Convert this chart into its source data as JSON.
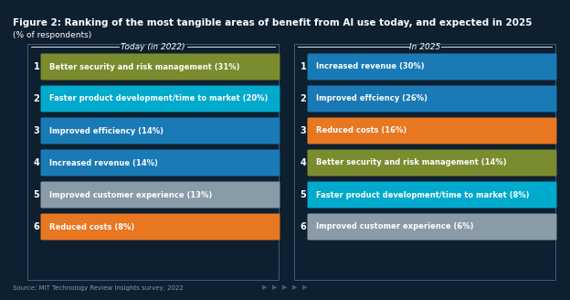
{
  "title": "Figure 2: Ranking of the most tangible areas of benefit from AI use today, and expected in 2025",
  "subtitle": "(% of respondents)",
  "source": "Source: MIT Technology Review Insights survey, 2022",
  "bg_color": "#0e1f30",
  "left_header": "Today (in 2022)",
  "right_header": "In 2025",
  "left_items": [
    {
      "rank": "1",
      "label": "Better security and risk management (31%)",
      "color": "#7a8c2e"
    },
    {
      "rank": "2",
      "label": "Faster product development/time to market (20%)",
      "color": "#00aacc"
    },
    {
      "rank": "3",
      "label": "Improved efficiency (14%)",
      "color": "#1a7ab5"
    },
    {
      "rank": "4",
      "label": "Increased revenue (14%)",
      "color": "#1a7ab5"
    },
    {
      "rank": "5",
      "label": "Improved customer experience (13%)",
      "color": "#8a9ba8"
    },
    {
      "rank": "6",
      "label": "Reduced costs (8%)",
      "color": "#e87722"
    }
  ],
  "right_items": [
    {
      "rank": "1",
      "label": "Increased revenue (30%)",
      "color": "#1a7ab5"
    },
    {
      "rank": "2",
      "label": "Improved effciency (26%)",
      "color": "#1a7ab5"
    },
    {
      "rank": "3",
      "label": "Reduced costs (16%)",
      "color": "#e87722"
    },
    {
      "rank": "4",
      "label": "Better security and risk management (14%)",
      "color": "#7a8c2e"
    },
    {
      "rank": "5",
      "label": "Faster product development/time to market (8%)",
      "color": "#00aacc"
    },
    {
      "rank": "6",
      "label": "Improved customer experience (6%)",
      "color": "#8a9ba8"
    }
  ],
  "fig_width": 6.24,
  "fig_height": 3.28,
  "dpi": 100,
  "title_fontsize": 7.5,
  "subtitle_fontsize": 6.5,
  "label_fontsize": 6.0,
  "rank_fontsize": 7.0,
  "header_fontsize": 6.5,
  "source_fontsize": 5.0,
  "border_color": "#2a4a6a"
}
